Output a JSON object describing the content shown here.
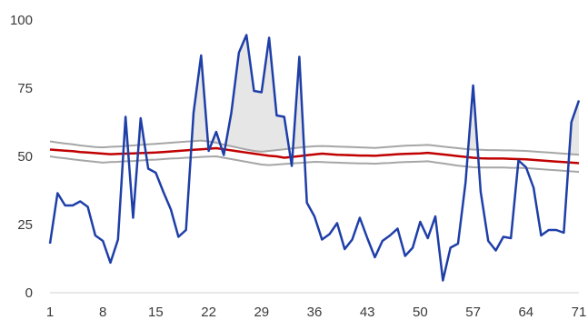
{
  "chart_data": {
    "type": "line",
    "title": "",
    "xlabel": "",
    "ylabel": "",
    "x": [
      1,
      2,
      3,
      4,
      5,
      6,
      7,
      8,
      9,
      10,
      11,
      12,
      13,
      14,
      15,
      16,
      17,
      18,
      19,
      20,
      21,
      22,
      23,
      24,
      25,
      26,
      27,
      28,
      29,
      30,
      31,
      32,
      33,
      34,
      35,
      36,
      37,
      38,
      39,
      40,
      41,
      42,
      43,
      44,
      45,
      46,
      47,
      48,
      49,
      50,
      51,
      52,
      53,
      54,
      55,
      56,
      57,
      58,
      59,
      60,
      61,
      62,
      63,
      64,
      65,
      66,
      67,
      68,
      69,
      70,
      71
    ],
    "xlim": [
      1,
      71
    ],
    "ylim": [
      0,
      100
    ],
    "x_ticks": [
      "1",
      "8",
      "15",
      "22",
      "29",
      "36",
      "43",
      "50",
      "57",
      "64",
      "71"
    ],
    "y_ticks": [
      "0",
      "25",
      "50",
      "75",
      "100"
    ],
    "grid": false,
    "legend": "none",
    "shading": "fill between value line and upper band where value exceeds upper band",
    "series": [
      {
        "role": "values",
        "color": "#1f3fa8",
        "values": [
          18,
          36.5,
          32,
          32,
          33.5,
          31.5,
          21,
          19,
          11,
          19.5,
          64.5,
          27.5,
          64,
          45.5,
          44,
          37,
          30.5,
          20.5,
          23,
          66,
          87,
          52,
          59,
          50.5,
          66,
          88,
          94.5,
          74,
          73.5,
          93.5,
          65,
          64.5,
          46.5,
          86.5,
          33,
          28,
          19.5,
          21.5,
          25.5,
          16,
          19.5,
          27.5,
          20,
          13,
          19,
          21,
          23.5,
          13.5,
          16.5,
          26,
          20,
          28,
          4.5,
          16.5,
          18,
          40.5,
          76,
          37,
          19,
          15.5,
          20.5,
          20,
          48.5,
          46,
          38.5,
          21,
          23,
          23,
          22,
          62.5,
          70.5
        ]
      },
      {
        "role": "mean",
        "color": "#c00000",
        "values": [
          52.5,
          52.3,
          52.1,
          51.9,
          51.6,
          51.4,
          51.2,
          51,
          50.8,
          50.9,
          51,
          51.1,
          51.2,
          51.3,
          51.4,
          51.6,
          51.8,
          52,
          52.2,
          52.4,
          52.6,
          52.8,
          53,
          52.6,
          52.2,
          51.8,
          51.4,
          51,
          50.6,
          50.2,
          50,
          49.5,
          49.8,
          50.1,
          50.4,
          50.7,
          51,
          50.8,
          50.6,
          50.5,
          50.4,
          50.3,
          50.3,
          50.2,
          50.4,
          50.6,
          50.8,
          50.9,
          51,
          51.1,
          51.3,
          51,
          50.7,
          50.4,
          50.1,
          49.8,
          49.5,
          49.3,
          49.2,
          49.2,
          49.2,
          49.1,
          49,
          48.9,
          48.7,
          48.5,
          48.3,
          48.1,
          47.9,
          47.7,
          47.5
        ]
      },
      {
        "role": "upper",
        "color": "#a6a6a6",
        "values": [
          55.5,
          55.1,
          54.7,
          54.4,
          54,
          53.7,
          53.4,
          53.3,
          53.5,
          53.6,
          53.8,
          54,
          54.2,
          54.4,
          54.6,
          54.8,
          55,
          55.2,
          55.4,
          55.6,
          55.8,
          55.5,
          55,
          54.3,
          53.7,
          53.1,
          52.5,
          52,
          51.7,
          52,
          52.3,
          52.6,
          52.9,
          53.2,
          53.5,
          53.7,
          53.8,
          53.7,
          53.6,
          53.5,
          53.4,
          53.3,
          53.2,
          53.1,
          53.3,
          53.5,
          53.7,
          53.9,
          54,
          54.1,
          54.2,
          53.9,
          53.6,
          53.3,
          53,
          52.7,
          52.5,
          52.4,
          52.3,
          52.3,
          52.2,
          52.2,
          52.1,
          52,
          51.8,
          51.6,
          51.4,
          51.2,
          51,
          50.8,
          50.6
        ]
      },
      {
        "role": "lower",
        "color": "#a6a6a6",
        "values": [
          50,
          49.6,
          49.3,
          48.9,
          48.6,
          48.3,
          48,
          47.7,
          47.9,
          48,
          48.2,
          48.3,
          48.5,
          48.7,
          48.8,
          49,
          49.2,
          49.3,
          49.5,
          49.6,
          49.8,
          49.9,
          50,
          49.5,
          49,
          48.5,
          48,
          47.5,
          47,
          46.8,
          47,
          47.2,
          47.4,
          47.6,
          47.8,
          48,
          47.9,
          47.8,
          47.7,
          47.6,
          47.5,
          47.4,
          47.4,
          47.3,
          47.5,
          47.6,
          47.8,
          47.9,
          48,
          48.1,
          48.2,
          47.8,
          47.4,
          47,
          46.6,
          46.3,
          46,
          45.9,
          45.9,
          45.9,
          45.9,
          45.8,
          45.8,
          45.7,
          45.5,
          45.3,
          45.1,
          44.9,
          44.7,
          44.5,
          44.3
        ]
      }
    ]
  }
}
